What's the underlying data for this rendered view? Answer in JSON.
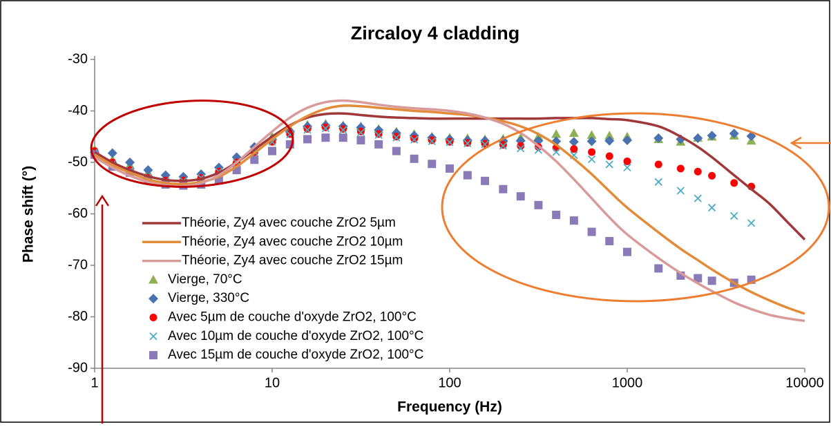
{
  "chart_data": {
    "type": "line",
    "title": "Zircaloy 4 cladding",
    "x_label": "Frequency (Hz)",
    "y_label": "Phase shift (°)",
    "x_log": true,
    "grid": false,
    "xlim": [
      1,
      10000
    ],
    "xticks": [
      1,
      10,
      100,
      1000,
      10000
    ],
    "ylim": [
      -90,
      -30
    ],
    "yticks": [
      -90,
      -80,
      -70,
      -60,
      -50,
      -40,
      -30
    ],
    "x": [
      1,
      1.26,
      1.58,
      2,
      2.51,
      3.16,
      3.98,
      5.01,
      6.31,
      7.94,
      10,
      12.6,
      15.8,
      20,
      25.1,
      31.6,
      39.8,
      50.1,
      63.1,
      79.4,
      100,
      126,
      158,
      200,
      251,
      316,
      398,
      501,
      631,
      794,
      1000,
      1500,
      2000,
      2500,
      3000,
      4000,
      5000,
      6310,
      7940,
      10000
    ],
    "series": [
      {
        "name": "Théorie, Zy4 avec couche ZrO2 5µm",
        "color": "#a0383a",
        "style": "line",
        "values": [
          -48,
          -50,
          -51.5,
          -52.7,
          -53.4,
          -53.6,
          -53.2,
          -52,
          -50,
          -47.5,
          -45,
          -42.8,
          -41.3,
          -40.6,
          -40.5,
          -40.8,
          -41.1,
          -41.3,
          -41.4,
          -41.5,
          -41.5,
          -41.5,
          -41.5,
          -41.5,
          -41.5,
          -41.5,
          -41.4,
          -41.4,
          -41.4,
          -41.6,
          -41.8,
          -43,
          -45,
          -47,
          -49,
          -52.5,
          -55.2,
          -58,
          -61.5,
          -65
        ]
      },
      {
        "name": "Théorie, Zy4 avec couche ZrO2 10µm",
        "color": "#e28b39",
        "style": "line",
        "values": [
          -48.5,
          -50.5,
          -52,
          -53.3,
          -54,
          -54.2,
          -53.8,
          -52.8,
          -50.8,
          -48.2,
          -45.5,
          -43,
          -41,
          -39.6,
          -39,
          -39.1,
          -39.4,
          -39.7,
          -40,
          -40.2,
          -40.5,
          -40.8,
          -41.3,
          -42,
          -43,
          -44.5,
          -46.6,
          -49.3,
          -52.3,
          -55.6,
          -58.8,
          -63.6,
          -66.8,
          -69,
          -70.8,
          -73.4,
          -75.2,
          -76.8,
          -78.2,
          -79.4
        ]
      },
      {
        "name": "Théorie, Zy4 avec couche ZrO2 15µm",
        "color": "#d99a9a",
        "style": "line",
        "values": [
          -49,
          -51,
          -52.6,
          -53.8,
          -54.5,
          -54.6,
          -54,
          -52.5,
          -50,
          -47,
          -44,
          -41.3,
          -39.4,
          -38.3,
          -38,
          -38.3,
          -38.8,
          -39.2,
          -39.5,
          -39.7,
          -40,
          -40.5,
          -41.3,
          -42.5,
          -44.3,
          -46.8,
          -49.8,
          -53.3,
          -57,
          -60.7,
          -64,
          -68.6,
          -71.5,
          -73.5,
          -75,
          -77.2,
          -78.5,
          -79.6,
          -80.3,
          -80.8
        ]
      },
      {
        "name": "Vierge, 70°C",
        "color": "#8db051",
        "style": "triangle",
        "values": [
          -47.5,
          -49.5,
          -50.5,
          -52,
          -53,
          -53,
          -52.5,
          -51.5,
          -49.5,
          -47,
          -45,
          -43.5,
          -42.7,
          -42.5,
          -42.8,
          -43,
          -43.5,
          -44,
          -44.5,
          -45,
          -45.2,
          -45.3,
          -45.5,
          -45.4,
          -45.2,
          -45,
          -44.5,
          -44.3,
          -44.7,
          -44.8,
          -45,
          -45.5,
          -46,
          -45.2,
          -45,
          -44.8,
          -45.8,
          null,
          null,
          null
        ]
      },
      {
        "name": "Vierge, 330°C",
        "color": "#4a72b0",
        "style": "diamond",
        "values": [
          -48,
          -48.2,
          -50,
          -51.5,
          -52.5,
          -52.8,
          -52.3,
          -51,
          -49,
          -47,
          -45.5,
          -44,
          -43,
          -42.8,
          -43,
          -43.2,
          -43.7,
          -44.3,
          -44.8,
          -45.2,
          -45.5,
          -45.7,
          -45.8,
          -45.8,
          -45.8,
          -45.8,
          -45.9,
          -46,
          -45.9,
          -45.8,
          -45.7,
          -45.3,
          -45.5,
          -45.3,
          -44.8,
          -44.4,
          -44.9,
          null,
          null,
          null
        ]
      },
      {
        "name": "Avec 5µm de couche d'oxyde ZrO2, 100°C",
        "color": "#ff0000",
        "style": "circle",
        "values": [
          -47.8,
          -50,
          -51.5,
          -53,
          -53.5,
          -53.5,
          -53,
          -51.8,
          -50,
          -48,
          -46,
          -44.5,
          -43.5,
          -43.2,
          -43.5,
          -44,
          -44.5,
          -45,
          -45.4,
          -45.7,
          -46,
          -46.2,
          -46.4,
          -46.6,
          -46.8,
          -47,
          -47.2,
          -47.4,
          -48,
          -48.8,
          -49.8,
          -50.4,
          -51.2,
          -51.8,
          -52.6,
          -54,
          -54.7,
          null,
          null,
          null
        ]
      },
      {
        "name": "Avec 10µm de couche d'oxyde ZrO2, 100°C",
        "color": "#4bacc6",
        "style": "cross",
        "values": [
          -48,
          -50.3,
          -51.6,
          -53,
          -53.6,
          -53.6,
          -53,
          -51.8,
          -50,
          -48,
          -46,
          -44.6,
          -43.7,
          -43.4,
          -43.7,
          -44.2,
          -44.7,
          -45.2,
          -45.6,
          -45.9,
          -46.1,
          -46.3,
          -46.5,
          -46.8,
          -47.3,
          -47.6,
          -48,
          -48.6,
          -49.4,
          -50.4,
          -51,
          -53.8,
          -55.5,
          -57,
          -58.8,
          -60.4,
          -61.8,
          null,
          null,
          null
        ]
      },
      {
        "name": "Avec 15µm de couche d'oxyde ZrO2, 100°C",
        "color": "#8a7ab8",
        "style": "square",
        "values": [
          -48.5,
          -50.8,
          -52,
          -53.3,
          -54.3,
          -54.5,
          -54.3,
          -53.5,
          -51.5,
          -49.5,
          -47.8,
          -46.5,
          -45.5,
          -45.2,
          -45.2,
          -45.7,
          -46.5,
          -47.8,
          -49.3,
          -50.3,
          -51.2,
          -52.5,
          -53.6,
          -55.2,
          -56.6,
          -58.3,
          -60.2,
          -61.3,
          -63.5,
          -65.3,
          -67.4,
          -70.6,
          -72,
          -72.5,
          -73,
          -73.4,
          -72.8,
          null,
          null,
          null
        ]
      }
    ]
  }
}
